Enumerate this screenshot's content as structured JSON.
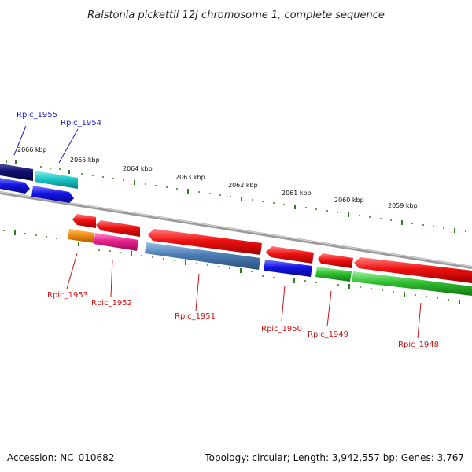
{
  "title": "Ralstonia pickettii 12J chromosome 1, complete sequence",
  "footer": {
    "accession": "Accession: NC_010682",
    "summary": "Topology: circular; Length: 3,942,557 bp; Genes: 3,767"
  },
  "scale_labels": [
    "2066 kbp",
    "2065 kbp",
    "2064 kbp",
    "2063 kbp",
    "2062 kbp",
    "2061 kbp",
    "2060 kbp",
    "2059 kbp"
  ],
  "gene_labels": {
    "rpic_1955": "Rpic_1955",
    "rpic_1954": "Rpic_1954",
    "rpic_1953": "Rpic_1953",
    "rpic_1952": "Rpic_1952",
    "rpic_1951": "Rpic_1951",
    "rpic_1950": "Rpic_1950",
    "rpic_1949": "Rpic_1949",
    "rpic_1948": "Rpic_1948"
  },
  "colors": {
    "backbone": "#808080",
    "tick": "#2e7d1e",
    "red": "#ee1111",
    "blue": "#1414e6",
    "navy": "#101070",
    "cyan": "#1cc8c8",
    "orange": "#f08c10",
    "pink": "#e8208c",
    "steel": "#4a7db4",
    "green": "#30c030",
    "label_blue": "#1a1acc",
    "label_red": "#cc1111"
  }
}
